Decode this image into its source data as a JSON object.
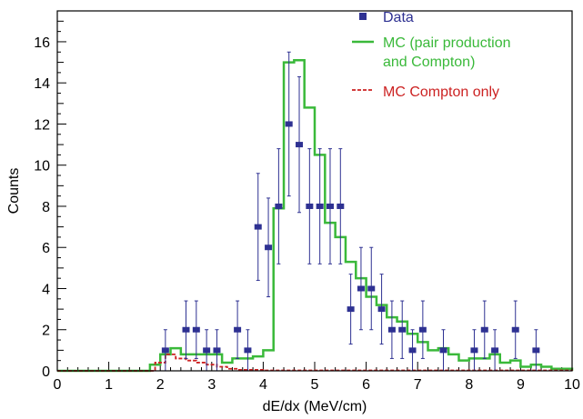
{
  "chart_data": {
    "type": "histogram",
    "xlabel": "dE/dx (MeV/cm)",
    "ylabel": "Counts",
    "xlim": [
      0,
      10
    ],
    "ylim": [
      0,
      17.5
    ],
    "xticks": [
      0,
      1,
      2,
      3,
      4,
      5,
      6,
      7,
      8,
      9,
      10
    ],
    "yticks": [
      0,
      2,
      4,
      6,
      8,
      10,
      12,
      14,
      16
    ],
    "grid": false,
    "legend_position": "top-right",
    "legend": [
      {
        "label": "Data",
        "color": "#2e3192",
        "marker": "square"
      },
      {
        "label_lines": [
          "MC (pair production",
          "and Compton)"
        ],
        "color": "#3ab93a",
        "style": "solid"
      },
      {
        "label": "MC Compton only",
        "color": "#cc2222",
        "style": "dashed"
      }
    ],
    "data_points": [
      {
        "x": 2.1,
        "y": 1,
        "err": 1.0
      },
      {
        "x": 2.5,
        "y": 2,
        "err": 1.4
      },
      {
        "x": 2.7,
        "y": 2,
        "err": 1.4
      },
      {
        "x": 2.9,
        "y": 1,
        "err": 1.0
      },
      {
        "x": 3.1,
        "y": 1,
        "err": 1.0
      },
      {
        "x": 3.5,
        "y": 2,
        "err": 1.4
      },
      {
        "x": 3.7,
        "y": 1,
        "err": 1.0
      },
      {
        "x": 3.9,
        "y": 7,
        "err": 2.6
      },
      {
        "x": 4.1,
        "y": 6,
        "err": 2.4
      },
      {
        "x": 4.3,
        "y": 8,
        "err": 2.8
      },
      {
        "x": 4.5,
        "y": 12,
        "err": 3.5
      },
      {
        "x": 4.7,
        "y": 11,
        "err": 3.3
      },
      {
        "x": 4.9,
        "y": 8,
        "err": 2.8
      },
      {
        "x": 5.1,
        "y": 8,
        "err": 2.8
      },
      {
        "x": 5.3,
        "y": 8,
        "err": 2.8
      },
      {
        "x": 5.5,
        "y": 8,
        "err": 2.8
      },
      {
        "x": 5.7,
        "y": 3,
        "err": 1.7
      },
      {
        "x": 5.9,
        "y": 4,
        "err": 2.0
      },
      {
        "x": 6.1,
        "y": 4,
        "err": 2.0
      },
      {
        "x": 6.3,
        "y": 3,
        "err": 1.7
      },
      {
        "x": 6.5,
        "y": 2,
        "err": 1.4
      },
      {
        "x": 6.7,
        "y": 2,
        "err": 1.4
      },
      {
        "x": 6.9,
        "y": 1,
        "err": 1.0
      },
      {
        "x": 7.1,
        "y": 2,
        "err": 1.4
      },
      {
        "x": 7.5,
        "y": 1,
        "err": 1.0
      },
      {
        "x": 8.1,
        "y": 1,
        "err": 1.0
      },
      {
        "x": 8.3,
        "y": 2,
        "err": 1.4
      },
      {
        "x": 8.5,
        "y": 1,
        "err": 1.0
      },
      {
        "x": 8.9,
        "y": 2,
        "err": 1.4
      },
      {
        "x": 9.3,
        "y": 1,
        "err": 1.0
      }
    ],
    "mc_total": {
      "name": "MC (pair production and Compton)",
      "bin_edges": [
        0,
        1.8,
        2.0,
        2.2,
        2.4,
        2.6,
        2.8,
        3.0,
        3.2,
        3.4,
        3.6,
        3.8,
        4.0,
        4.2,
        4.4,
        4.6,
        4.8,
        5.0,
        5.2,
        5.4,
        5.6,
        5.8,
        6.0,
        6.2,
        6.4,
        6.6,
        6.8,
        7.0,
        7.2,
        7.4,
        7.6,
        7.8,
        8.0,
        8.2,
        8.4,
        8.6,
        8.8,
        9.0,
        9.2,
        9.4,
        9.6,
        10.0
      ],
      "values": [
        0,
        0.3,
        0.8,
        1.1,
        0.8,
        0.8,
        0.8,
        0.8,
        0.4,
        0.6,
        0.6,
        0.7,
        1.0,
        7.9,
        15.0,
        15.1,
        12.8,
        10.5,
        7.2,
        6.5,
        5.3,
        4.5,
        3.6,
        3.2,
        2.6,
        2.4,
        1.8,
        1.4,
        1.0,
        1.1,
        0.8,
        0.5,
        0.6,
        0.6,
        0.8,
        0.4,
        0.5,
        0.2,
        0.3,
        0.2,
        0.1
      ]
    },
    "mc_compton": {
      "name": "MC Compton only",
      "bin_edges": [
        0,
        1.9,
        2.1,
        2.3,
        2.5,
        2.7,
        2.9,
        3.1,
        3.3,
        3.5,
        4.0,
        10.0
      ],
      "values": [
        0,
        0.4,
        0.8,
        0.6,
        0.5,
        0.4,
        0.3,
        0.2,
        0.1,
        0.05,
        0.02
      ]
    }
  }
}
